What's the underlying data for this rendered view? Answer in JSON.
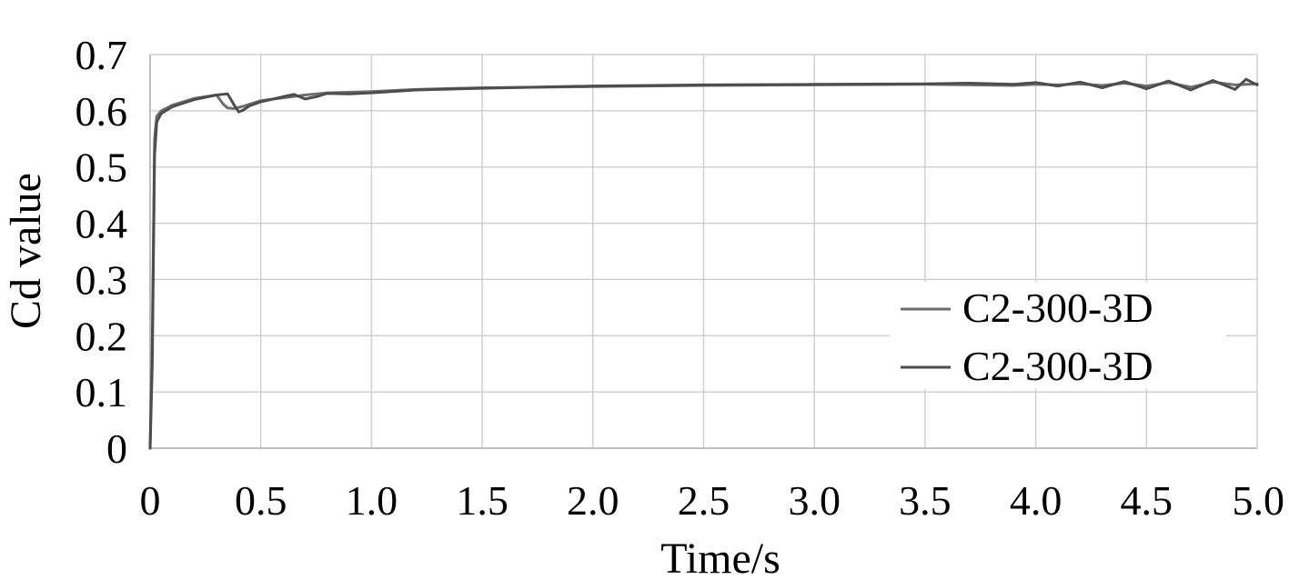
{
  "chart_data": {
    "type": "line",
    "title": "",
    "xlabel": "Time/s",
    "ylabel": "Cd value",
    "xlim": [
      0,
      5.0
    ],
    "ylim": [
      0,
      0.7
    ],
    "x_ticks": [
      0,
      0.5,
      1.0,
      1.5,
      2.0,
      2.5,
      3.0,
      3.5,
      4.0,
      4.5,
      5.0
    ],
    "x_tick_labels": [
      "0",
      "0.5",
      "1.0",
      "1.5",
      "2.0",
      "2.5",
      "3.0",
      "3.5",
      "4.0",
      "4.5",
      "5.0"
    ],
    "y_ticks": [
      0,
      0.1,
      0.2,
      0.3,
      0.4,
      0.5,
      0.6,
      0.7
    ],
    "y_tick_labels": [
      "0",
      "0.1",
      "0.2",
      "0.3",
      "0.4",
      "0.5",
      "0.6",
      "0.7"
    ],
    "grid": true,
    "legend_position": "right",
    "series": [
      {
        "name": "C2-300-3D",
        "color": "#6e6e6e",
        "x": [
          0,
          0.01,
          0.02,
          0.03,
          0.05,
          0.1,
          0.2,
          0.3,
          0.33,
          0.35,
          0.38,
          0.42,
          0.5,
          0.6,
          0.7,
          0.8,
          1.0,
          1.2,
          1.5,
          2.0,
          2.5,
          3.0,
          3.5,
          3.7,
          3.9,
          4.0,
          4.1,
          4.2,
          4.3,
          4.4,
          4.5,
          4.6,
          4.7,
          4.8,
          4.9,
          5.0
        ],
        "y": [
          0,
          0.2,
          0.55,
          0.59,
          0.6,
          0.61,
          0.622,
          0.628,
          0.612,
          0.605,
          0.604,
          0.608,
          0.618,
          0.623,
          0.628,
          0.632,
          0.634,
          0.638,
          0.641,
          0.643,
          0.645,
          0.646,
          0.647,
          0.646,
          0.645,
          0.647,
          0.646,
          0.648,
          0.645,
          0.649,
          0.644,
          0.65,
          0.642,
          0.651,
          0.646,
          0.648
        ]
      },
      {
        "name": "C2-300-3D",
        "color": "#4d4d4d",
        "x": [
          0,
          0.01,
          0.02,
          0.03,
          0.05,
          0.1,
          0.2,
          0.3,
          0.35,
          0.38,
          0.4,
          0.42,
          0.45,
          0.5,
          0.6,
          0.65,
          0.7,
          0.75,
          0.8,
          0.9,
          1.0,
          1.2,
          1.5,
          2.0,
          2.5,
          3.0,
          3.5,
          3.7,
          3.9,
          4.0,
          4.1,
          4.2,
          4.3,
          4.4,
          4.5,
          4.6,
          4.7,
          4.8,
          4.9,
          4.95,
          5.0
        ],
        "y": [
          0,
          0.15,
          0.52,
          0.58,
          0.595,
          0.607,
          0.62,
          0.628,
          0.63,
          0.61,
          0.598,
          0.601,
          0.609,
          0.616,
          0.625,
          0.629,
          0.621,
          0.625,
          0.631,
          0.63,
          0.632,
          0.637,
          0.64,
          0.644,
          0.646,
          0.647,
          0.648,
          0.649,
          0.647,
          0.65,
          0.644,
          0.651,
          0.641,
          0.652,
          0.639,
          0.653,
          0.637,
          0.654,
          0.638,
          0.656,
          0.646
        ]
      }
    ]
  }
}
